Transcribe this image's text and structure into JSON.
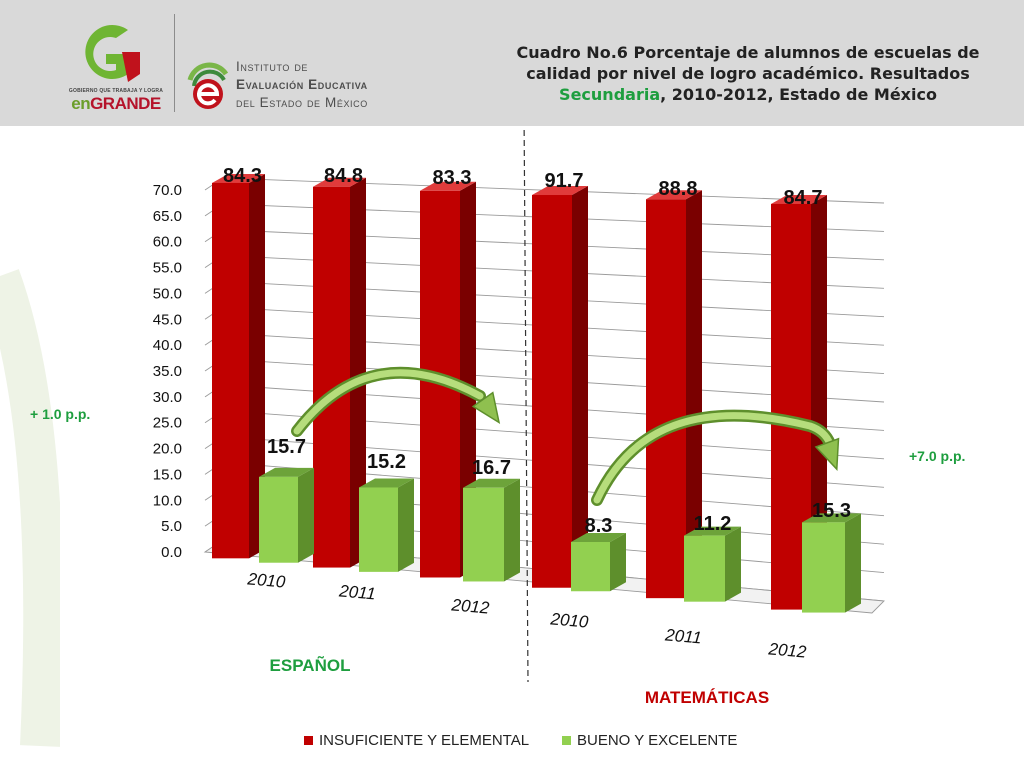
{
  "header": {
    "logo_tagline": "GOBIERNO QUE TRABAJA Y LOGRA",
    "logo_brand_prefix": "en",
    "logo_brand_suffix": "GRANDE",
    "institute_line1": "Instituto de",
    "institute_line2": "Evaluación Educativa",
    "institute_line3": "del Estado de México",
    "title_line1": "Cuadro No.6 Porcentaje de alumnos de escuelas de",
    "title_line2": "calidad por nivel de logro académico. Resultados",
    "title_highlight": "Secundaria",
    "title_line3_rest": ", 2010-2012, Estado de México",
    "highlight_color": "#1e9e3f"
  },
  "chart_data": {
    "type": "bar",
    "title": "",
    "xlabel": "",
    "ylabel": "",
    "ylim": [
      0,
      70
    ],
    "yticks": [
      "0.0",
      "5.0",
      "10.0",
      "15.0",
      "20.0",
      "25.0",
      "30.0",
      "35.0",
      "40.0",
      "45.0",
      "50.0",
      "55.0",
      "60.0",
      "65.0",
      "70.0"
    ],
    "groups": [
      {
        "name": "ESPAÑOL",
        "color": "#1e9e3f",
        "categories": [
          "2010",
          "2011",
          "2012"
        ]
      },
      {
        "name": "MATEMÁTICAS",
        "color": "#c00000",
        "categories": [
          "2010",
          "2011",
          "2012"
        ]
      }
    ],
    "series": [
      {
        "name": "INSUFICIENTE Y ELEMENTAL",
        "color": "#c00000",
        "values": [
          84.3,
          84.8,
          83.3,
          91.7,
          88.8,
          84.7
        ],
        "labels": [
          "84.3",
          "84.8",
          "83.3",
          "91.7",
          "88.8",
          "84.7"
        ]
      },
      {
        "name": "BUENO Y EXCELENTE",
        "color": "#92d050",
        "values": [
          15.7,
          15.2,
          16.7,
          8.3,
          11.2,
          15.3
        ],
        "labels": [
          "15.7",
          "15.2",
          "16.7",
          "8.3",
          "11.2",
          "15.3"
        ]
      }
    ],
    "annotations": [
      "+ 1.0 p.p.",
      "+7.0 p.p."
    ],
    "legend_position": "bottom"
  }
}
